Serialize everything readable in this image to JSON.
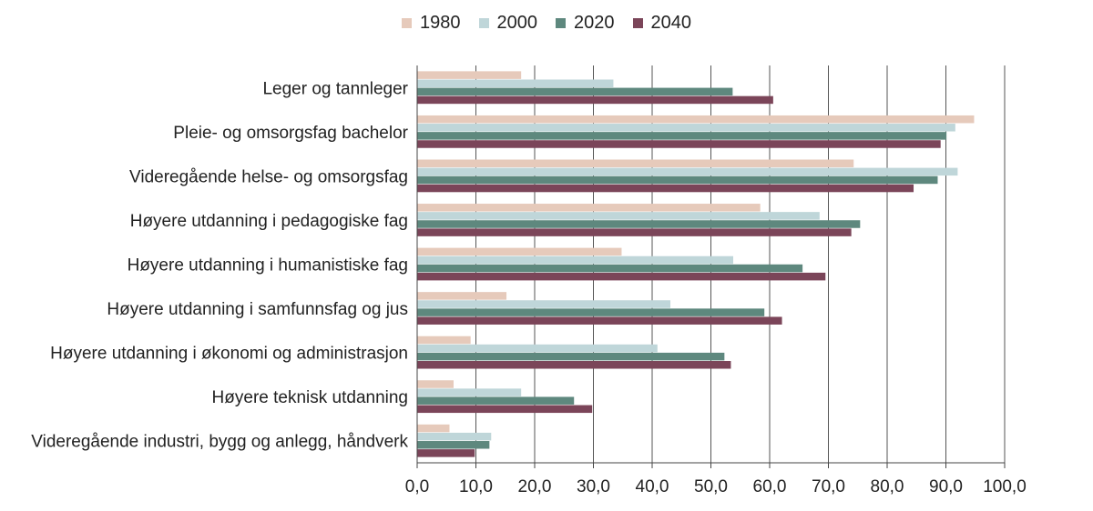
{
  "chart_data": {
    "type": "bar",
    "orientation": "horizontal",
    "title": "",
    "xlabel": "",
    "ylabel": "",
    "xlim": [
      0,
      100
    ],
    "grid": true,
    "legend_position": "top-center",
    "categories": [
      "Leger og tannleger",
      "Pleie- og omsorgsfag bachelor",
      "Videregående helse- og omsorgsfag",
      "Høyere utdanning i pedagogiske fag",
      "Høyere utdanning i humanistiske fag",
      "Høyere utdanning i samfunnsfag og jus",
      "Høyere utdanning i økonomi og administrasjon",
      "Høyere teknisk utdanning",
      "Videregående industri, bygg og anlegg, håndverk"
    ],
    "series": [
      {
        "name": "1980",
        "color": "#e6cabb",
        "values": [
          17.7,
          94.8,
          74.3,
          58.4,
          34.8,
          15.2,
          9.1,
          6.2,
          5.5
        ]
      },
      {
        "name": "2000",
        "color": "#bfd6d9",
        "values": [
          33.4,
          91.6,
          92.0,
          68.5,
          53.8,
          43.1,
          40.9,
          17.7,
          12.6
        ]
      },
      {
        "name": "2020",
        "color": "#5e887e",
        "values": [
          53.7,
          90.1,
          88.6,
          75.4,
          65.6,
          59.1,
          52.3,
          26.7,
          12.3
        ]
      },
      {
        "name": "2040",
        "color": "#7b4559",
        "values": [
          60.6,
          89.1,
          84.5,
          73.9,
          69.5,
          62.1,
          53.4,
          29.8,
          9.8
        ]
      }
    ],
    "ticks": [
      "0,0",
      "10,0",
      "20,0",
      "30,0",
      "40,0",
      "50,0",
      "60,0",
      "70,0",
      "80,0",
      "90,0",
      "100,0"
    ]
  }
}
